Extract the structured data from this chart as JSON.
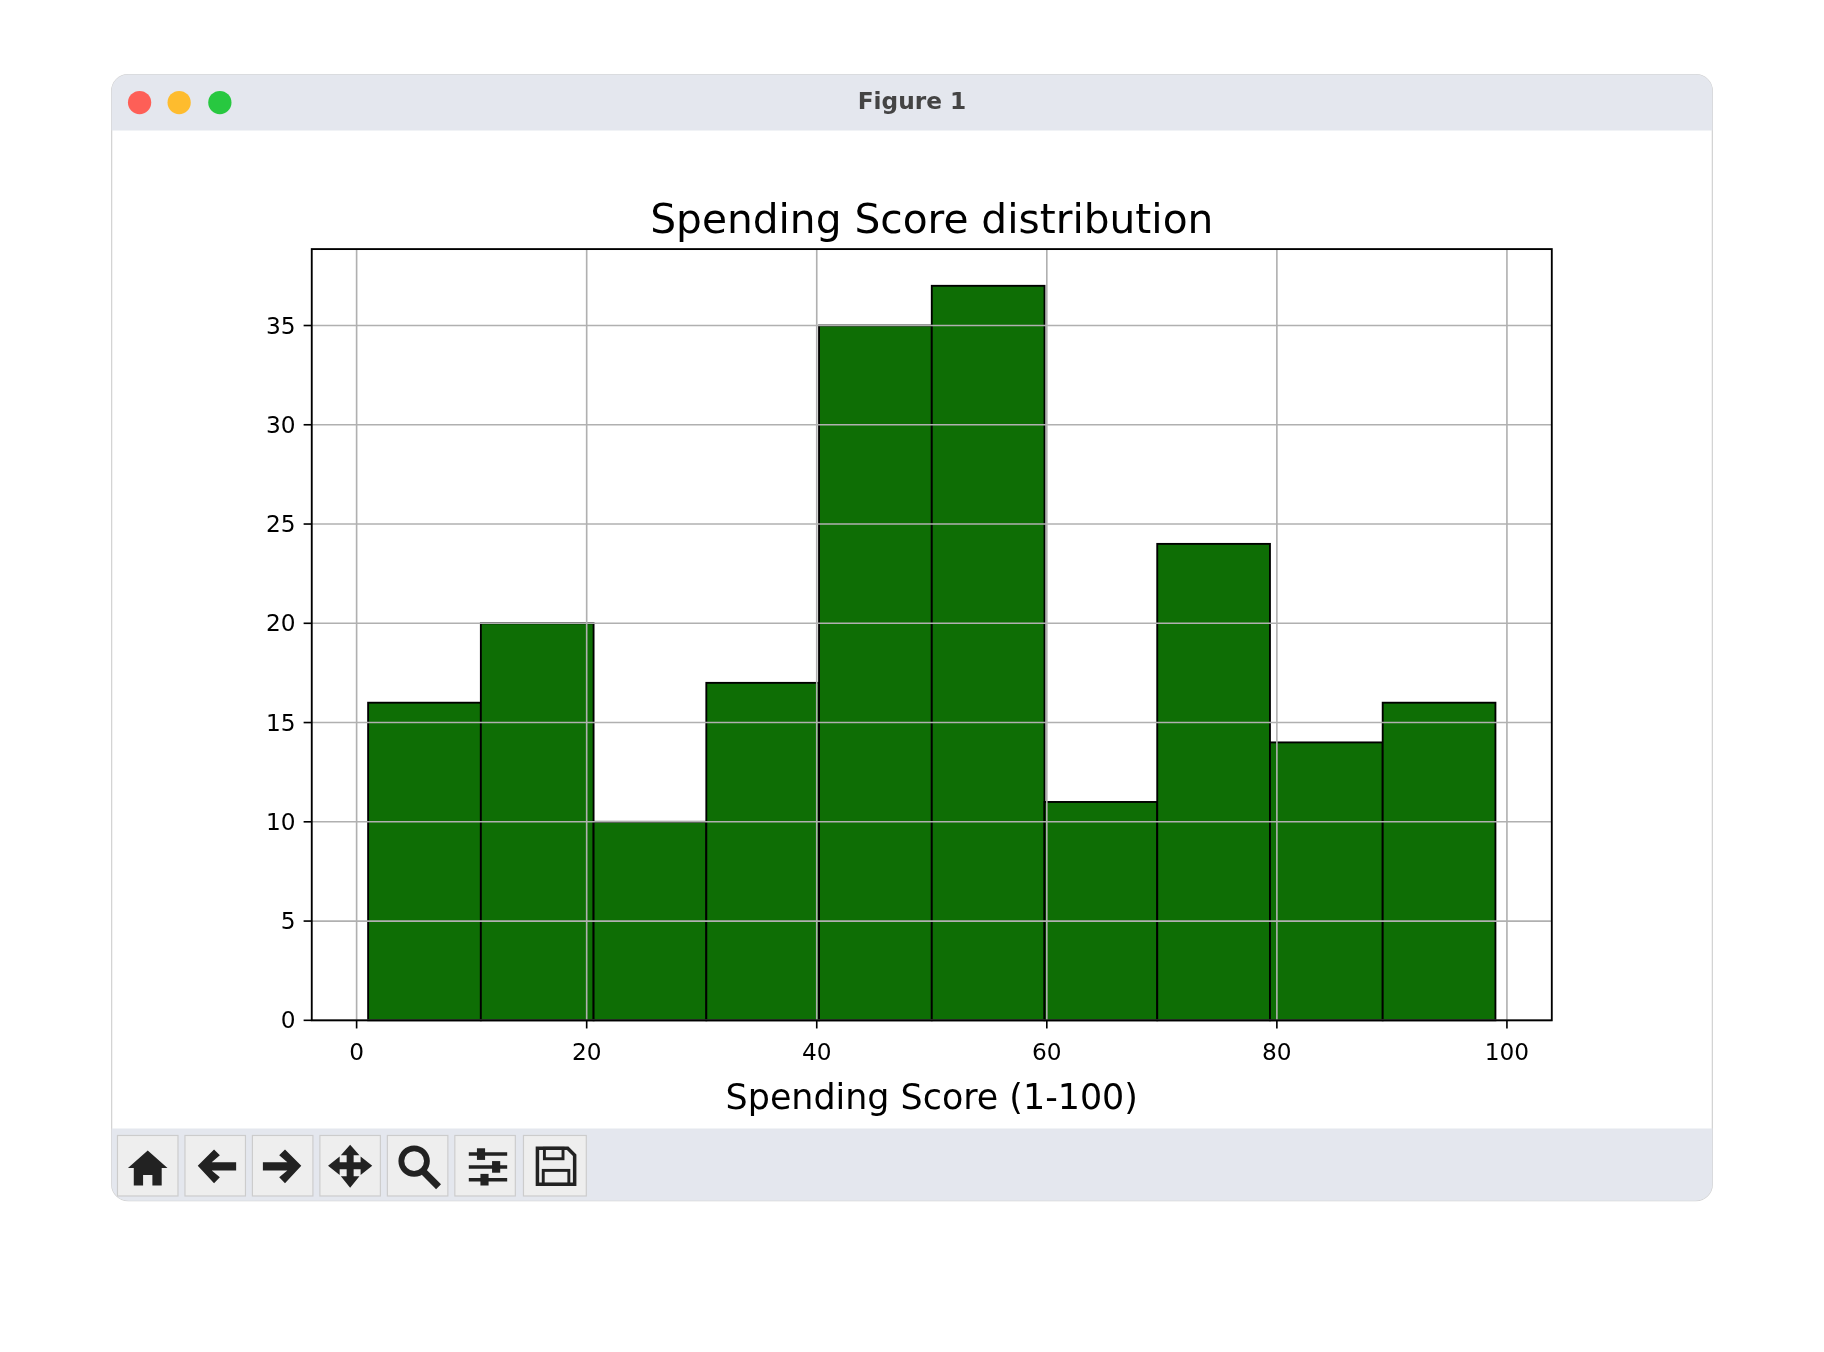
{
  "chart_data": {
    "type": "histogram",
    "title": "Spending Score distribution",
    "xlabel": "Spending Score (1-100)",
    "annotations": [
      "Figure 1"
    ],
    "bins": [
      1,
      10.8,
      20.6,
      30.4,
      40.2,
      50,
      59.8,
      69.6,
      79.4,
      89.2,
      99
    ],
    "values": [
      16,
      20,
      10,
      17,
      35,
      37,
      11,
      24,
      14,
      16
    ],
    "color": "#0e6e05",
    "xlim": [
      -3.9,
      103.9
    ],
    "xticks": [
      0,
      20,
      40,
      60,
      80,
      100
    ],
    "ylim": [
      0,
      38.85
    ],
    "yticks": [
      0,
      5,
      10,
      15,
      20,
      25,
      30,
      35
    ],
    "grid": true
  }
}
